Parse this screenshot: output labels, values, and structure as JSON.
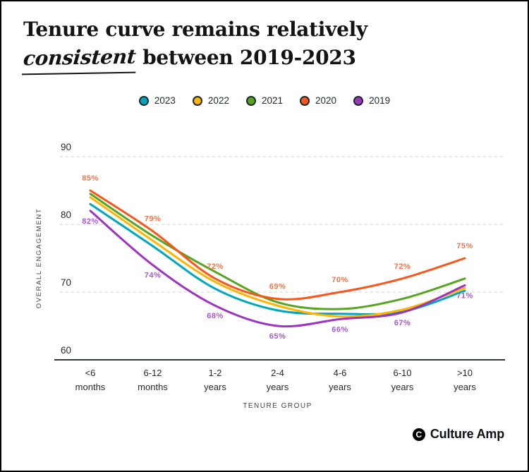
{
  "title": {
    "line1": "Tenure curve remains relatively",
    "line2_script": "consistent",
    "line2_rest": "between 2019-2023"
  },
  "branding": {
    "mark_letter": "C",
    "name": "Culture Amp"
  },
  "chart_data": {
    "type": "line",
    "title": "Tenure curve remains relatively consistent between 2019-2023",
    "xlabel": "TENURE GROUP",
    "ylabel": "OVERALL ENGAGEMENT",
    "categories": [
      "<6 months",
      "6-12 months",
      "1-2 years",
      "2-4 years",
      "4-6 years",
      "6-10 years",
      ">10 years"
    ],
    "yticks": [
      60,
      70,
      80,
      90
    ],
    "ylim": [
      60,
      92
    ],
    "grid": "horizontal-dashed",
    "legend_position": "top",
    "series": [
      {
        "name": "2023",
        "color": "#00A7BC",
        "values": [
          83,
          76.8,
          70.5,
          67.3,
          66.8,
          67.1,
          70.2
        ]
      },
      {
        "name": "2022",
        "color": "#FFB400",
        "values": [
          84,
          77.6,
          71.5,
          68,
          66.4,
          67.4,
          70.6
        ]
      },
      {
        "name": "2021",
        "color": "#56A51F",
        "values": [
          84.5,
          78.3,
          73,
          68.5,
          67.5,
          69,
          72
        ]
      },
      {
        "name": "2020",
        "color": "#FB551A",
        "label_color": "#F0764B",
        "label_position": "above",
        "values": [
          85,
          79,
          72,
          69,
          70,
          72,
          75
        ],
        "point_labels": [
          "85%",
          "79%",
          "72%",
          "69%",
          "70%",
          "72%",
          "75%"
        ]
      },
      {
        "name": "2019",
        "color": "#9D33BE",
        "label_color": "#A959CC",
        "label_position": "below",
        "values": [
          82,
          74,
          68,
          65,
          66,
          67,
          71
        ],
        "point_labels": [
          "82%",
          "74%",
          "68%",
          "65%",
          "66%",
          "67%",
          "71%"
        ]
      }
    ]
  }
}
